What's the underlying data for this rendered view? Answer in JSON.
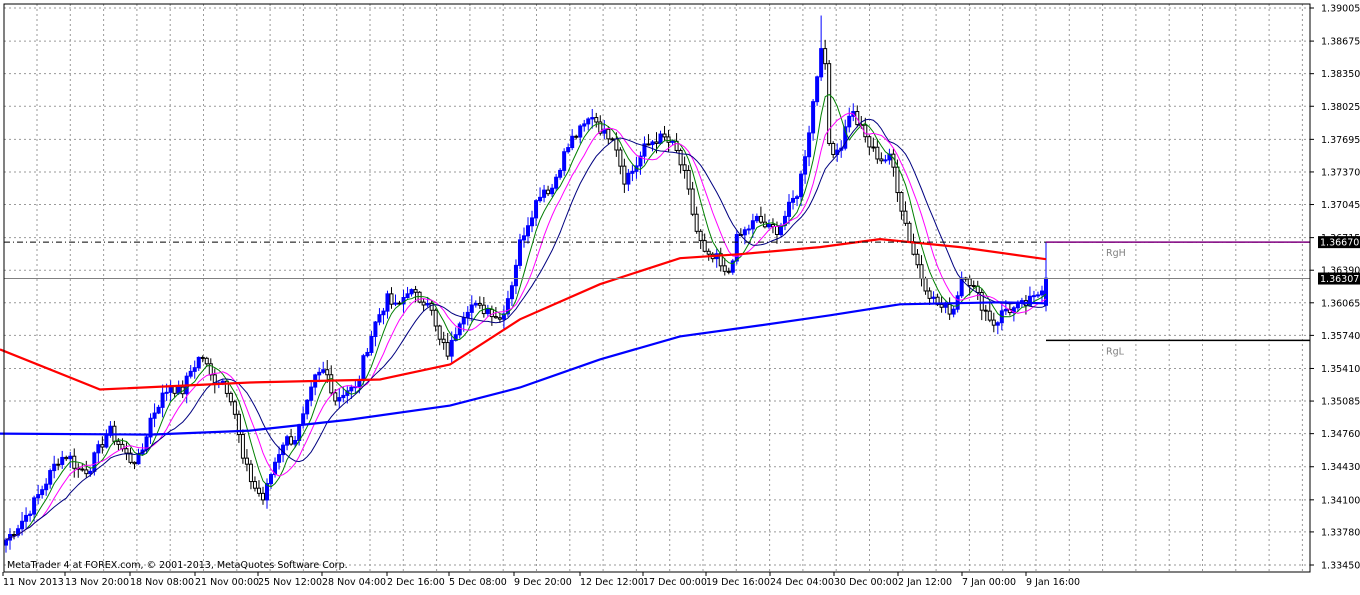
{
  "copyright": "MetaTrader 4 at FOREX.com, © 2001-2013, MetaQuotes Software Corp.",
  "colors": {
    "background": "#ffffff",
    "grid": "#9a9a9a",
    "bull": "#0000ff",
    "bear": "#000000",
    "ma_fast": "#008000",
    "ma_mid": "#ff00ff",
    "ma_slow": "#000080",
    "ma_red": "#ff0000",
    "ma_blue": "#0000ff",
    "rgh": "#800080"
  },
  "chart_data": {
    "type": "candlestick",
    "grid": true,
    "ylim": [
      1.3345,
      1.39005
    ],
    "y_ticks": [
      "1.39005",
      "1.38675",
      "1.38350",
      "1.38025",
      "1.37695",
      "1.37370",
      "1.37045",
      "1.36715",
      "1.36390",
      "1.36065",
      "1.35740",
      "1.35410",
      "1.35085",
      "1.34760",
      "1.34430",
      "1.34100",
      "1.33780",
      "1.33450"
    ],
    "x_ticks": [
      "11 Nov 2013",
      "13 Nov 20:00",
      "18 Nov 08:00",
      "21 Nov 00:00",
      "25 Nov 12:00",
      "28 Nov 04:00",
      "2 Dec 16:00",
      "5 Dec 08:00",
      "9 Dec 20:00",
      "12 Dec 12:00",
      "17 Dec 00:00",
      "19 Dec 16:00",
      "24 Dec 04:00",
      "30 Dec 00:00",
      "2 Jan 12:00",
      "7 Jan 00:00",
      "9 Jan 16:00"
    ],
    "current_price": "1.36307",
    "level_rgh": {
      "label": "RgH",
      "price_label": "1.36670",
      "value": 1.3667
    },
    "level_rgl": {
      "label": "RgL",
      "value": 1.3569
    },
    "level_dashed": {
      "value": 1.3667
    },
    "close_path": [
      [
        1.337,
        1.3382,
        1.3395,
        1.3412,
        1.343,
        1.345,
        1.3455,
        1.344
      ],
      [
        1.344,
        1.346,
        1.348,
        1.3465,
        1.345
      ],
      [
        1.345,
        1.349,
        1.351,
        1.3525,
        1.3515,
        1.354,
        1.3555,
        1.353
      ],
      [
        1.353,
        1.351,
        1.345,
        1.3425,
        1.341,
        1.3445,
        1.347
      ],
      [
        1.347,
        1.3495,
        1.353,
        1.354,
        1.351,
        1.352
      ],
      [
        1.352,
        1.356,
        1.359,
        1.361,
        1.36,
        1.362,
        1.361
      ],
      [
        1.361,
        1.357,
        1.3555,
        1.359,
        1.3605,
        1.36
      ],
      [
        1.36,
        1.359,
        1.362,
        1.367,
        1.3695,
        1.372
      ],
      [
        1.372,
        1.375,
        1.377,
        1.378,
        1.3795,
        1.3775
      ],
      [
        1.3775,
        1.373,
        1.374,
        1.376,
        1.377
      ],
      [
        1.377,
        1.376,
        1.373,
        1.368,
        1.365
      ],
      [
        1.365,
        1.363,
        1.367,
        1.368,
        1.369,
        1.368
      ],
      [
        1.368,
        1.37,
        1.372,
        1.378,
        1.385,
        1.376
      ],
      [
        1.376,
        1.38,
        1.378,
        1.376,
        1.375
      ],
      [
        1.375,
        1.37,
        1.366,
        1.363,
        1.361,
        1.36
      ],
      [
        1.36,
        1.364,
        1.362,
        1.36,
        1.3585,
        1.36
      ],
      [
        1.36,
        1.3605,
        1.3611,
        1.3631
      ]
    ],
    "ma_red": [
      [
        0,
        1.356
      ],
      [
        100,
        1.352
      ],
      [
        250,
        1.3527
      ],
      [
        380,
        1.353
      ],
      [
        450,
        1.3545
      ],
      [
        520,
        1.359
      ],
      [
        600,
        1.3625
      ],
      [
        680,
        1.3651
      ],
      [
        740,
        1.3655
      ],
      [
        820,
        1.3662
      ],
      [
        880,
        1.367
      ],
      [
        960,
        1.3662
      ],
      [
        1046,
        1.365
      ]
    ],
    "ma_blue": [
      [
        0,
        1.3476
      ],
      [
        150,
        1.3475
      ],
      [
        250,
        1.3479
      ],
      [
        350,
        1.349
      ],
      [
        450,
        1.3504
      ],
      [
        520,
        1.3522
      ],
      [
        600,
        1.355
      ],
      [
        680,
        1.3573
      ],
      [
        760,
        1.3584
      ],
      [
        830,
        1.3594
      ],
      [
        900,
        1.3605
      ],
      [
        1000,
        1.3607
      ],
      [
        1046,
        1.3606
      ]
    ]
  }
}
